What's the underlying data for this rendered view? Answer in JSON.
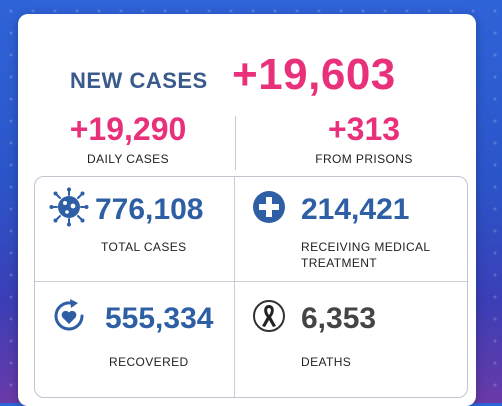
{
  "headline": {
    "label": "NEW CASES",
    "value": "+19,603"
  },
  "breakdown": [
    {
      "value": "+19,290",
      "caption": "DAILY CASES"
    },
    {
      "value": "+313",
      "caption": "FROM PRISONS"
    }
  ],
  "stats": {
    "total": {
      "value": "776,108",
      "caption": "TOTAL CASES",
      "icon": "virus-icon"
    },
    "receiving": {
      "value": "214,421",
      "caption": "RECEIVING MEDICAL TREATMENT",
      "icon": "medical-cross-icon"
    },
    "recovered": {
      "value": "555,334",
      "caption": "RECOVERED",
      "icon": "recovery-heart-icon"
    },
    "deaths": {
      "value": "6,353",
      "caption": "DEATHS",
      "icon": "mourning-ribbon-icon"
    }
  },
  "colors": {
    "accent_pink": "#e8317a",
    "accent_blue": "#2e5fa5",
    "label_blue": "#3a5a8c"
  }
}
